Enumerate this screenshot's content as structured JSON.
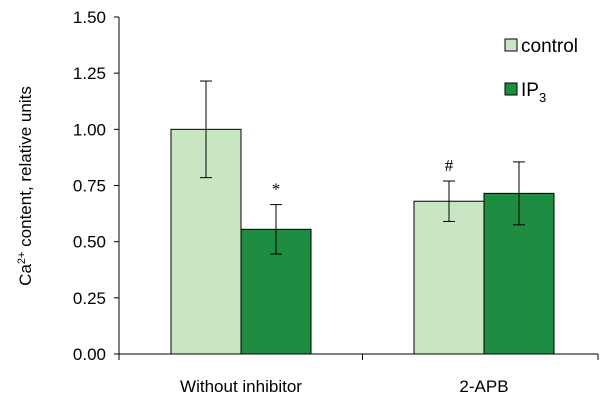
{
  "chart_data": {
    "type": "bar",
    "categories": [
      "Without inhibitor",
      "2-APB"
    ],
    "series": [
      {
        "name": "control",
        "values": [
          1.0,
          0.68
        ],
        "errors": [
          0.215,
          0.09
        ],
        "color": "#c9e6c3"
      },
      {
        "name": "IP3",
        "name_main": "IP",
        "name_sub": "3",
        "values": [
          0.555,
          0.715
        ],
        "errors": [
          0.11,
          0.14
        ],
        "color": "#1e8c41"
      }
    ],
    "annotations": [
      {
        "category": 0,
        "series": 1,
        "text": "*"
      },
      {
        "category": 1,
        "series": 0,
        "text": "#"
      }
    ],
    "ylabel": {
      "pre": "Ca",
      "sup": "2+",
      "post": " content, relative units"
    },
    "ylim": [
      0,
      1.5
    ],
    "yticks": [
      "0.00",
      "0.25",
      "0.50",
      "0.75",
      "1.00",
      "1.25",
      "1.50"
    ],
    "legend_position": "top-right",
    "grid": false
  }
}
